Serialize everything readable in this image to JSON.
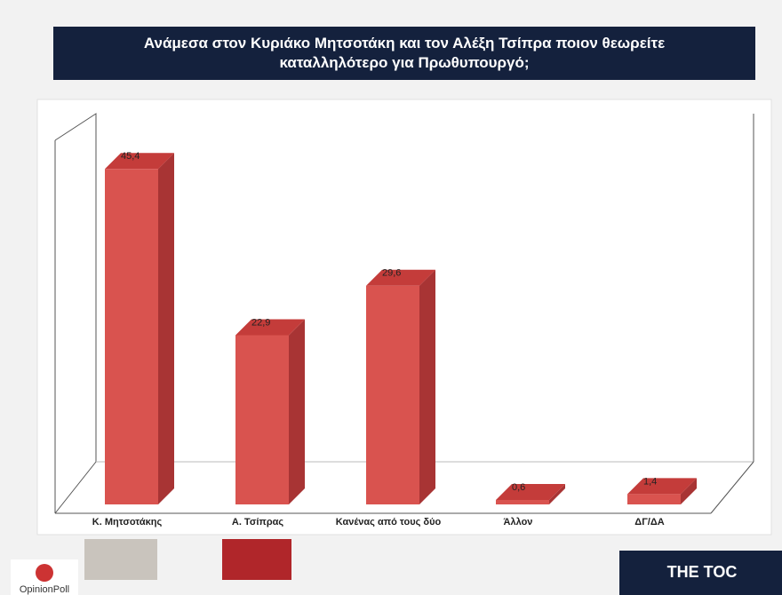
{
  "chart_data": {
    "type": "bar3d",
    "title": "Ανάμεσα στον Κυριάκο Μητσοτάκη και τον Αλέξη Τσίπρα ποιον θεωρείτε καταλληλότερο για Πρωθυπουργό;",
    "categories": [
      "Κ. Μητσοτάκης",
      "Α. Τσίπρας",
      "Κανένας από τους δύο",
      "Άλλον",
      "ΔΓ/ΔΑ"
    ],
    "values": [
      45.4,
      22.9,
      29.6,
      0.6,
      1.4
    ],
    "value_labels": [
      "45,4",
      "22,9",
      "29,6",
      "0,6",
      "1,4"
    ],
    "color": "#d9534f",
    "ylim": [
      0,
      50
    ]
  },
  "logos": {
    "left": "OpinionPoll",
    "right": "THE TOC"
  }
}
